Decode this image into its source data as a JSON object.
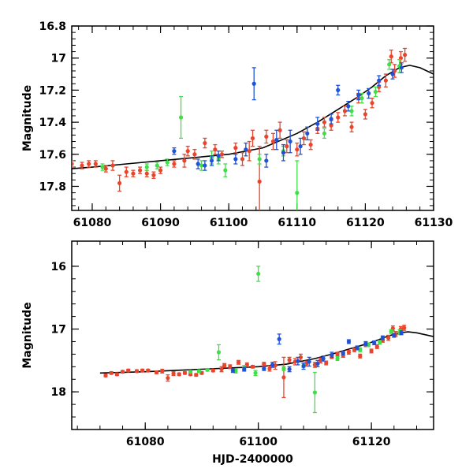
{
  "chart_data": [
    {
      "type": "scatter",
      "xlabel": "",
      "ylabel": "Magnitude",
      "xlim": [
        61077,
        61130
      ],
      "ylim": [
        17.95,
        16.8
      ],
      "xticks": [
        61080,
        61090,
        61100,
        61110,
        61120,
        61130
      ],
      "xtick_labels": [
        "61080",
        "61090",
        "61100",
        "61110",
        "61120",
        "61130"
      ],
      "yticks": [
        16.8,
        17.0,
        17.2,
        17.4,
        17.6,
        17.8
      ],
      "ytick_labels": [
        "16.8",
        "17",
        "17.2",
        "17.4",
        "17.6",
        "17.8"
      ],
      "model_curve": {
        "color": "#000000",
        "x": [
          61077,
          61080,
          61085,
          61090,
          61095,
          61100,
          61105,
          61110,
          61113,
          61116,
          61119,
          61121,
          61123,
          61125,
          61126.5,
          61128,
          61130
        ],
        "y": [
          17.69,
          17.68,
          17.66,
          17.64,
          17.62,
          17.6,
          17.56,
          17.47,
          17.4,
          17.32,
          17.24,
          17.18,
          17.11,
          17.06,
          17.045,
          17.06,
          17.1
        ]
      },
      "series": [
        {
          "name": "red",
          "color": "#e8452c",
          "x": [
            61077,
            61078.5,
            61079.5,
            61080.5,
            61082,
            61083,
            61084,
            61085,
            61086,
            61087,
            61088,
            61089,
            61090,
            61092,
            61093.5,
            61094,
            61095,
            61096.5,
            61098,
            61099,
            61101,
            61102,
            61103,
            61103.5,
            61104.5,
            61105.5,
            61106.5,
            61107.5,
            61108.5,
            61110,
            61111,
            61112,
            61113,
            61114,
            61115,
            61116,
            61117,
            61118,
            61119,
            61120,
            61121,
            61122,
            61123,
            61123.8,
            61124.3,
            61125.2,
            61125.8
          ],
          "y": [
            17.66,
            17.67,
            17.66,
            17.66,
            17.69,
            17.67,
            17.78,
            17.71,
            17.72,
            17.7,
            17.72,
            17.73,
            17.7,
            17.66,
            17.64,
            17.58,
            17.6,
            17.53,
            17.57,
            17.6,
            17.56,
            17.63,
            17.58,
            17.5,
            17.77,
            17.49,
            17.52,
            17.45,
            17.55,
            17.57,
            17.5,
            17.54,
            17.44,
            17.4,
            17.42,
            17.37,
            17.33,
            17.43,
            17.25,
            17.35,
            17.28,
            17.18,
            17.14,
            16.99,
            17.08,
            17.0,
            16.98
          ],
          "yerr": [
            0.02,
            0.02,
            0.02,
            0.02,
            0.02,
            0.03,
            0.05,
            0.03,
            0.02,
            0.02,
            0.02,
            0.02,
            0.02,
            0.02,
            0.04,
            0.03,
            0.03,
            0.03,
            0.03,
            0.02,
            0.03,
            0.04,
            0.06,
            0.05,
            0.22,
            0.04,
            0.05,
            0.05,
            0.04,
            0.04,
            0.04,
            0.03,
            0.03,
            0.03,
            0.03,
            0.03,
            0.03,
            0.03,
            0.03,
            0.03,
            0.03,
            0.03,
            0.04,
            0.04,
            0.04,
            0.04,
            0.04
          ]
        },
        {
          "name": "green",
          "color": "#3fe047",
          "x": [
            61081.5,
            61088,
            61089.5,
            61091,
            61093,
            61096,
            61097.5,
            61098.5,
            61099.5,
            61104.5,
            61108,
            61110,
            61114,
            61118,
            61119.5,
            61121.5,
            61123.5,
            61125
          ],
          "y": [
            17.68,
            17.68,
            17.67,
            17.65,
            17.37,
            17.67,
            17.62,
            17.63,
            17.7,
            17.63,
            17.58,
            17.84,
            17.47,
            17.33,
            17.25,
            17.21,
            17.04,
            17.05
          ],
          "yerr": [
            0.02,
            0.02,
            0.02,
            0.02,
            0.13,
            0.03,
            0.04,
            0.03,
            0.04,
            0.03,
            0.03,
            0.2,
            0.03,
            0.03,
            0.03,
            0.03,
            0.03,
            0.04
          ]
        },
        {
          "name": "blue",
          "color": "#1f52d6",
          "x": [
            61092,
            61095.5,
            61096.5,
            61097.5,
            61098.5,
            61101,
            61102.5,
            61103.7,
            61105.5,
            61107,
            61108,
            61109,
            61110.5,
            61111.5,
            61113,
            61115,
            61116,
            61117.5,
            61119,
            61120.5,
            61122,
            61124,
            61125.3
          ],
          "y": [
            17.58,
            17.66,
            17.67,
            17.64,
            17.61,
            17.63,
            17.57,
            17.16,
            17.64,
            17.51,
            17.59,
            17.52,
            17.55,
            17.47,
            17.41,
            17.38,
            17.2,
            17.3,
            17.23,
            17.22,
            17.14,
            17.1,
            17.06
          ],
          "yerr": [
            0.02,
            0.03,
            0.03,
            0.03,
            0.03,
            0.03,
            0.04,
            0.1,
            0.04,
            0.06,
            0.05,
            0.07,
            0.05,
            0.04,
            0.04,
            0.03,
            0.03,
            0.03,
            0.03,
            0.03,
            0.03,
            0.03,
            0.03
          ]
        }
      ]
    },
    {
      "type": "scatter",
      "xlabel": "HJD-2400000",
      "ylabel": "Magnitude",
      "xlim": [
        61067,
        61131
      ],
      "ylim": [
        18.6,
        15.6
      ],
      "xticks": [
        61080,
        61100,
        61120
      ],
      "xtick_labels": [
        "61080",
        "61100",
        "61120"
      ],
      "yticks": [
        16,
        17,
        18
      ],
      "ytick_labels": [
        "16",
        "17",
        "18"
      ],
      "model_curve": {
        "color": "#000000",
        "x": [
          61072,
          61080,
          61090,
          61100,
          61105,
          61110,
          61113,
          61116,
          61119,
          61121,
          61123,
          61125,
          61126.5,
          61128,
          61131
        ],
        "y": [
          17.7,
          17.68,
          17.64,
          17.6,
          17.56,
          17.47,
          17.4,
          17.32,
          17.24,
          17.18,
          17.11,
          17.06,
          17.045,
          17.06,
          17.12
        ]
      },
      "series": [
        {
          "name": "red",
          "color": "#e8452c",
          "x": [
            61073,
            61074,
            61075,
            61076,
            61077,
            61078.5,
            61079.5,
            61080.5,
            61082,
            61083,
            61084,
            61085,
            61086,
            61087,
            61088,
            61089,
            61090,
            61092,
            61093.5,
            61094,
            61095,
            61096.5,
            61098,
            61099,
            61101,
            61102,
            61103,
            61104.5,
            61105.5,
            61106.5,
            61107.5,
            61108.5,
            61110,
            61111,
            61112,
            61113,
            61114,
            61115,
            61116,
            61117,
            61118,
            61119,
            61120,
            61121,
            61122,
            61123,
            61123.8,
            61124.3,
            61125.2,
            61125.8
          ],
          "y": [
            17.74,
            17.7,
            17.72,
            17.68,
            17.66,
            17.67,
            17.66,
            17.66,
            17.69,
            17.67,
            17.78,
            17.71,
            17.72,
            17.7,
            17.72,
            17.73,
            17.7,
            17.66,
            17.64,
            17.58,
            17.6,
            17.53,
            17.57,
            17.6,
            17.56,
            17.63,
            17.58,
            17.77,
            17.49,
            17.52,
            17.45,
            17.55,
            17.57,
            17.5,
            17.54,
            17.44,
            17.4,
            17.42,
            17.37,
            17.33,
            17.43,
            17.25,
            17.35,
            17.28,
            17.18,
            17.14,
            16.99,
            17.08,
            17.0,
            16.98
          ],
          "yerr": [
            0.02,
            0.02,
            0.02,
            0.02,
            0.02,
            0.02,
            0.02,
            0.02,
            0.02,
            0.03,
            0.05,
            0.03,
            0.02,
            0.02,
            0.02,
            0.02,
            0.02,
            0.02,
            0.04,
            0.03,
            0.03,
            0.03,
            0.03,
            0.02,
            0.03,
            0.04,
            0.06,
            0.32,
            0.04,
            0.05,
            0.05,
            0.04,
            0.04,
            0.04,
            0.03,
            0.03,
            0.03,
            0.03,
            0.03,
            0.03,
            0.03,
            0.03,
            0.03,
            0.03,
            0.03,
            0.04,
            0.04,
            0.04,
            0.04,
            0.04
          ]
        },
        {
          "name": "green",
          "color": "#3fe047",
          "x": [
            61088,
            61089.5,
            61091,
            61093,
            61096,
            61097.5,
            61099.5,
            61100,
            61104.5,
            61108,
            61110,
            61114,
            61118,
            61119.5,
            61121.5,
            61123.5,
            61125
          ],
          "y": [
            17.68,
            17.67,
            17.65,
            17.37,
            17.67,
            17.62,
            17.7,
            16.12,
            17.63,
            17.58,
            18.01,
            17.47,
            17.33,
            17.25,
            17.21,
            17.04,
            17.05
          ],
          "yerr": [
            0.02,
            0.02,
            0.02,
            0.12,
            0.03,
            0.04,
            0.04,
            0.12,
            0.03,
            0.03,
            0.32,
            0.03,
            0.03,
            0.03,
            0.03,
            0.03,
            0.04
          ]
        },
        {
          "name": "blue",
          "color": "#1f52d6",
          "x": [
            61095.5,
            61097.5,
            61101,
            61102.5,
            61103.7,
            61105.5,
            61107,
            61108,
            61109,
            61110.5,
            61111.5,
            61113,
            61115,
            61116,
            61117.5,
            61119,
            61120.5,
            61122,
            61124,
            61125.3
          ],
          "y": [
            17.66,
            17.64,
            17.63,
            17.57,
            17.16,
            17.64,
            17.51,
            17.59,
            17.52,
            17.55,
            17.47,
            17.41,
            17.38,
            17.2,
            17.3,
            17.23,
            17.22,
            17.14,
            17.1,
            17.06
          ],
          "yerr": [
            0.03,
            0.03,
            0.03,
            0.04,
            0.08,
            0.04,
            0.06,
            0.05,
            0.07,
            0.05,
            0.04,
            0.04,
            0.03,
            0.03,
            0.03,
            0.03,
            0.03,
            0.03,
            0.03,
            0.03
          ]
        }
      ]
    }
  ]
}
